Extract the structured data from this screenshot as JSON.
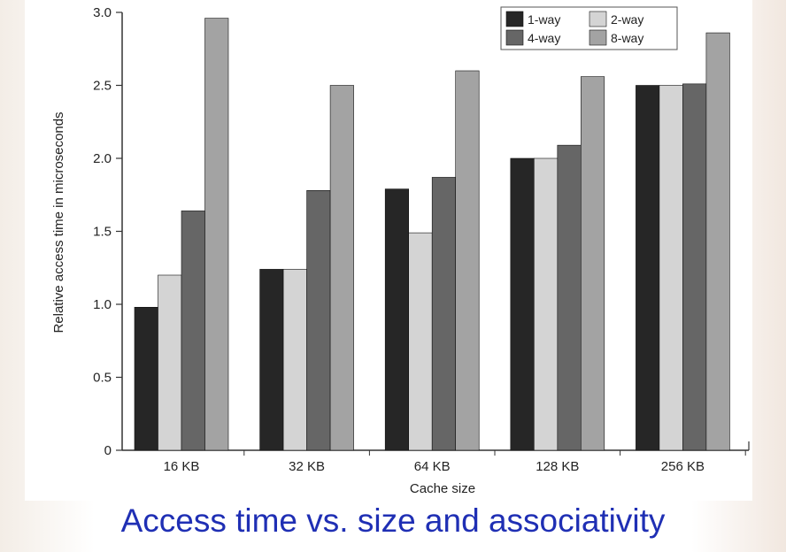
{
  "caption": "Access time vs. size and associativity",
  "colors": {
    "caption": "#1f2fb4",
    "series": [
      "#262626",
      "#d4d4d4",
      "#666666",
      "#a3a3a3"
    ]
  },
  "chart_data": {
    "type": "bar",
    "title": "",
    "xlabel": "Cache size",
    "ylabel": "Relative access time in microseconds",
    "categories": [
      "16 KB",
      "32 KB",
      "64 KB",
      "128 KB",
      "256 KB"
    ],
    "ylim": [
      0,
      3.0
    ],
    "yticks": [
      "0",
      "0.5",
      "1.0",
      "1.5",
      "2.0",
      "2.5",
      "3.0"
    ],
    "grid": false,
    "legend_position": "top-right",
    "series": [
      {
        "name": "1-way",
        "values": [
          0.98,
          1.24,
          1.79,
          2.0,
          2.5
        ]
      },
      {
        "name": "2-way",
        "values": [
          1.2,
          1.24,
          1.49,
          2.0,
          2.5
        ]
      },
      {
        "name": "4-way",
        "values": [
          1.64,
          1.78,
          1.87,
          2.09,
          2.51
        ]
      },
      {
        "name": "8-way",
        "values": [
          2.96,
          2.5,
          2.6,
          2.56,
          2.86
        ]
      }
    ]
  }
}
